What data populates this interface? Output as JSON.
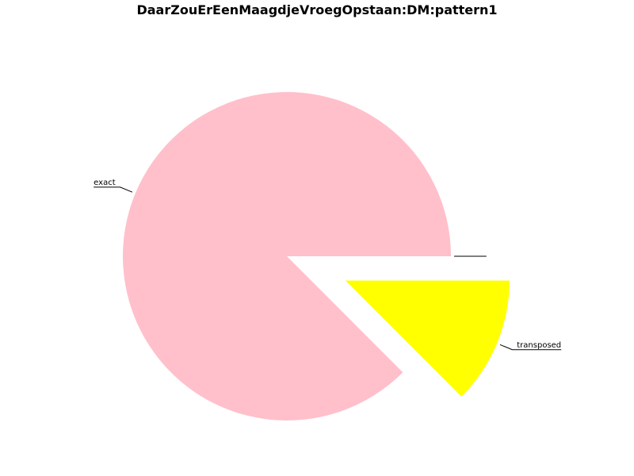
{
  "chart_data": {
    "type": "pie",
    "title": "DaarZouErEenMaagdjeVroegOpstaan:DM:pattern1",
    "slices": [
      {
        "label": "exact",
        "value": 87.5,
        "color": "#FFC0CB",
        "exploded": false
      },
      {
        "label": "transposed",
        "value": 12.5,
        "color": "#FFFF00",
        "exploded": true
      },
      {
        "label": "",
        "value": 0,
        "color": "#FFFFFF",
        "exploded": false
      },
      {
        "label": "",
        "value": 0,
        "color": "#FFFFFF",
        "exploded": false
      }
    ],
    "start_angle_deg": 0,
    "direction": "counterclockwise",
    "legend": false
  }
}
